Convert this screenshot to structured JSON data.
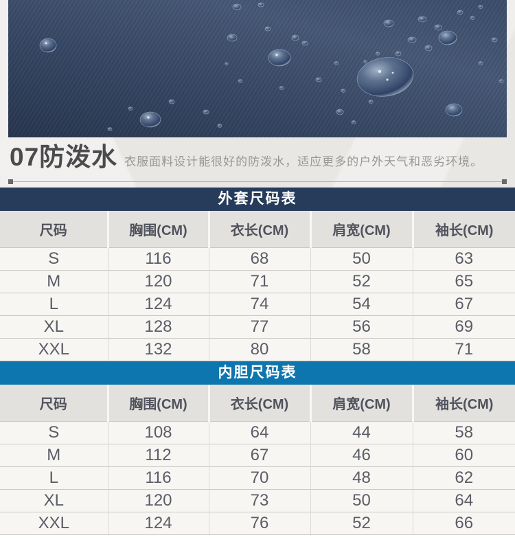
{
  "feature": {
    "number_title": "07防泼水",
    "description": "衣服面料设计能很好的防泼水，适应更多的户外天气和恶劣环境。"
  },
  "colors": {
    "outer_table_title_bg": "#263c5a",
    "liner_table_title_bg": "#0e76ae",
    "header_row_bg": "#e3e1de",
    "row_bg": "#f7f6f3",
    "fabric_navy": "#354662"
  },
  "size_tables": [
    {
      "title": "外套尺码表",
      "title_bg": "#263c5a",
      "columns": [
        "尺码",
        "胸围(CM)",
        "衣长(CM)",
        "肩宽(CM)",
        "袖长(CM)"
      ],
      "rows": [
        [
          "S",
          "116",
          "68",
          "50",
          "63"
        ],
        [
          "M",
          "120",
          "71",
          "52",
          "65"
        ],
        [
          "L",
          "124",
          "74",
          "54",
          "67"
        ],
        [
          "XL",
          "128",
          "77",
          "56",
          "69"
        ],
        [
          "XXL",
          "132",
          "80",
          "58",
          "71"
        ]
      ]
    },
    {
      "title": "内胆尺码表",
      "title_bg": "#0e76ae",
      "columns": [
        "尺码",
        "胸围(CM)",
        "衣长(CM)",
        "肩宽(CM)",
        "袖长(CM)"
      ],
      "rows": [
        [
          "S",
          "108",
          "64",
          "44",
          "58"
        ],
        [
          "M",
          "112",
          "67",
          "46",
          "60"
        ],
        [
          "L",
          "116",
          "70",
          "48",
          "62"
        ],
        [
          "XL",
          "120",
          "73",
          "50",
          "64"
        ],
        [
          "XXL",
          "124",
          "76",
          "52",
          "66"
        ]
      ]
    }
  ]
}
